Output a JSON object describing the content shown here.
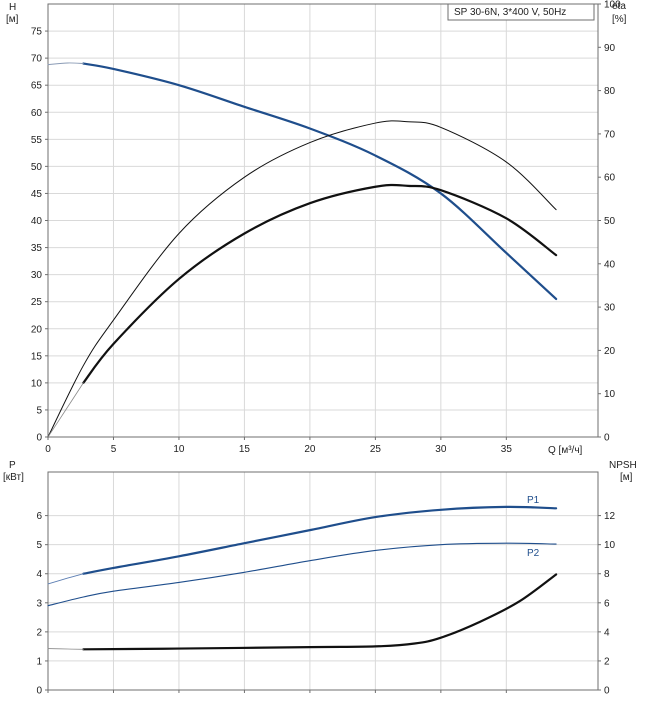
{
  "chart_data": [
    {
      "type": "line",
      "legend_box": "SP 30-6N, 3*400 V, 50Hz",
      "left_axis_title": [
        "H",
        "[м]"
      ],
      "right_axis_title": [
        "eta",
        "[%]"
      ],
      "x_axis_title": "Q [м³/ч]",
      "xlim": [
        0,
        42
      ],
      "ylim_left": [
        0,
        80
      ],
      "ylim_right": [
        0,
        100
      ],
      "x_ticks": [
        "0",
        "5",
        "10",
        "15",
        "20",
        "25",
        "30",
        "35"
      ],
      "y_ticks_left": [
        "0",
        "5",
        "10",
        "15",
        "20",
        "25",
        "30",
        "35",
        "40",
        "45",
        "50",
        "55",
        "60",
        "65",
        "70",
        "75"
      ],
      "y_ticks_right": [
        "0",
        "10",
        "20",
        "30",
        "40",
        "50",
        "60",
        "70",
        "80",
        "90",
        "100"
      ],
      "grid": true,
      "series": [
        {
          "name": "",
          "axis": "left",
          "color": "#1f4e8c",
          "width": 2.2,
          "x": [
            2.7,
            5,
            10,
            15,
            20,
            25,
            30,
            35,
            38.8
          ],
          "y": [
            69.0,
            68.0,
            65.0,
            61.0,
            57.0,
            52.0,
            45.0,
            34.0,
            25.5
          ]
        },
        {
          "name": "",
          "axis": "left",
          "color": "#8a9bb5",
          "width": 0.9,
          "x": [
            0,
            1.5,
            2.7
          ],
          "y": [
            68.8,
            69.1,
            69.0
          ]
        },
        {
          "name": "",
          "axis": "right",
          "color": "#111111",
          "width": 1.0,
          "x": [
            0,
            2.7,
            5,
            10,
            15,
            20,
            25,
            27.5,
            30,
            35,
            38.8
          ],
          "y": [
            0,
            16.5,
            27.0,
            47.0,
            60.0,
            68.0,
            72.5,
            72.8,
            71.5,
            63.5,
            52.5
          ]
        },
        {
          "name": "",
          "axis": "right",
          "color": "#111111",
          "width": 2.2,
          "x": [
            2.7,
            5,
            10,
            15,
            20,
            25,
            27.5,
            30,
            35,
            38.8
          ],
          "y": [
            12.5,
            21.5,
            36.5,
            47.0,
            54.0,
            57.8,
            58.0,
            57.0,
            50.5,
            42.0
          ]
        },
        {
          "name": "",
          "axis": "right",
          "color": "#8a8a8a",
          "width": 0.8,
          "x": [
            0,
            1.3,
            2.7
          ],
          "y": [
            0,
            6.0,
            12.5
          ]
        }
      ]
    },
    {
      "type": "line",
      "left_axis_title": [
        "P",
        "[кВт]"
      ],
      "right_axis_title": [
        "NPSH",
        "[м]"
      ],
      "xlim": [
        0,
        42
      ],
      "ylim_left": [
        0,
        7.5
      ],
      "ylim_right": [
        0,
        15
      ],
      "y_ticks_left": [
        "0",
        "1",
        "2",
        "3",
        "4",
        "5",
        "6"
      ],
      "y_ticks_right": [
        "0",
        "2",
        "4",
        "6",
        "8",
        "10",
        "12"
      ],
      "grid": true,
      "series": [
        {
          "name": "P1",
          "axis": "left",
          "color": "#1f4e8c",
          "width": 2.2,
          "x": [
            2.7,
            5,
            10,
            15,
            20,
            25,
            30,
            35,
            38.8
          ],
          "y": [
            4.0,
            4.2,
            4.6,
            5.05,
            5.5,
            5.95,
            6.2,
            6.3,
            6.25
          ]
        },
        {
          "name": "",
          "axis": "left",
          "color": "#5d7fb3",
          "width": 0.9,
          "x": [
            0,
            1.5,
            2.7
          ],
          "y": [
            3.65,
            3.85,
            4.0
          ]
        },
        {
          "name": "P2",
          "axis": "left",
          "color": "#1f4e8c",
          "width": 1.1,
          "x": [
            0,
            2.7,
            5,
            10,
            15,
            20,
            25,
            30,
            35,
            38.8
          ],
          "y": [
            2.9,
            3.2,
            3.4,
            3.7,
            4.05,
            4.45,
            4.8,
            5.0,
            5.05,
            5.02
          ]
        },
        {
          "name": "",
          "axis": "right",
          "color": "#111111",
          "width": 2.2,
          "x": [
            2.7,
            10,
            20,
            25,
            28,
            30,
            33,
            36,
            38.8
          ],
          "y": [
            2.8,
            2.85,
            2.95,
            3.0,
            3.2,
            3.6,
            4.7,
            6.1,
            7.95
          ]
        },
        {
          "name": "",
          "axis": "right",
          "color": "#8a8a8a",
          "width": 0.8,
          "x": [
            0,
            1.5,
            2.7
          ],
          "y": [
            2.85,
            2.82,
            2.8
          ]
        }
      ]
    }
  ]
}
